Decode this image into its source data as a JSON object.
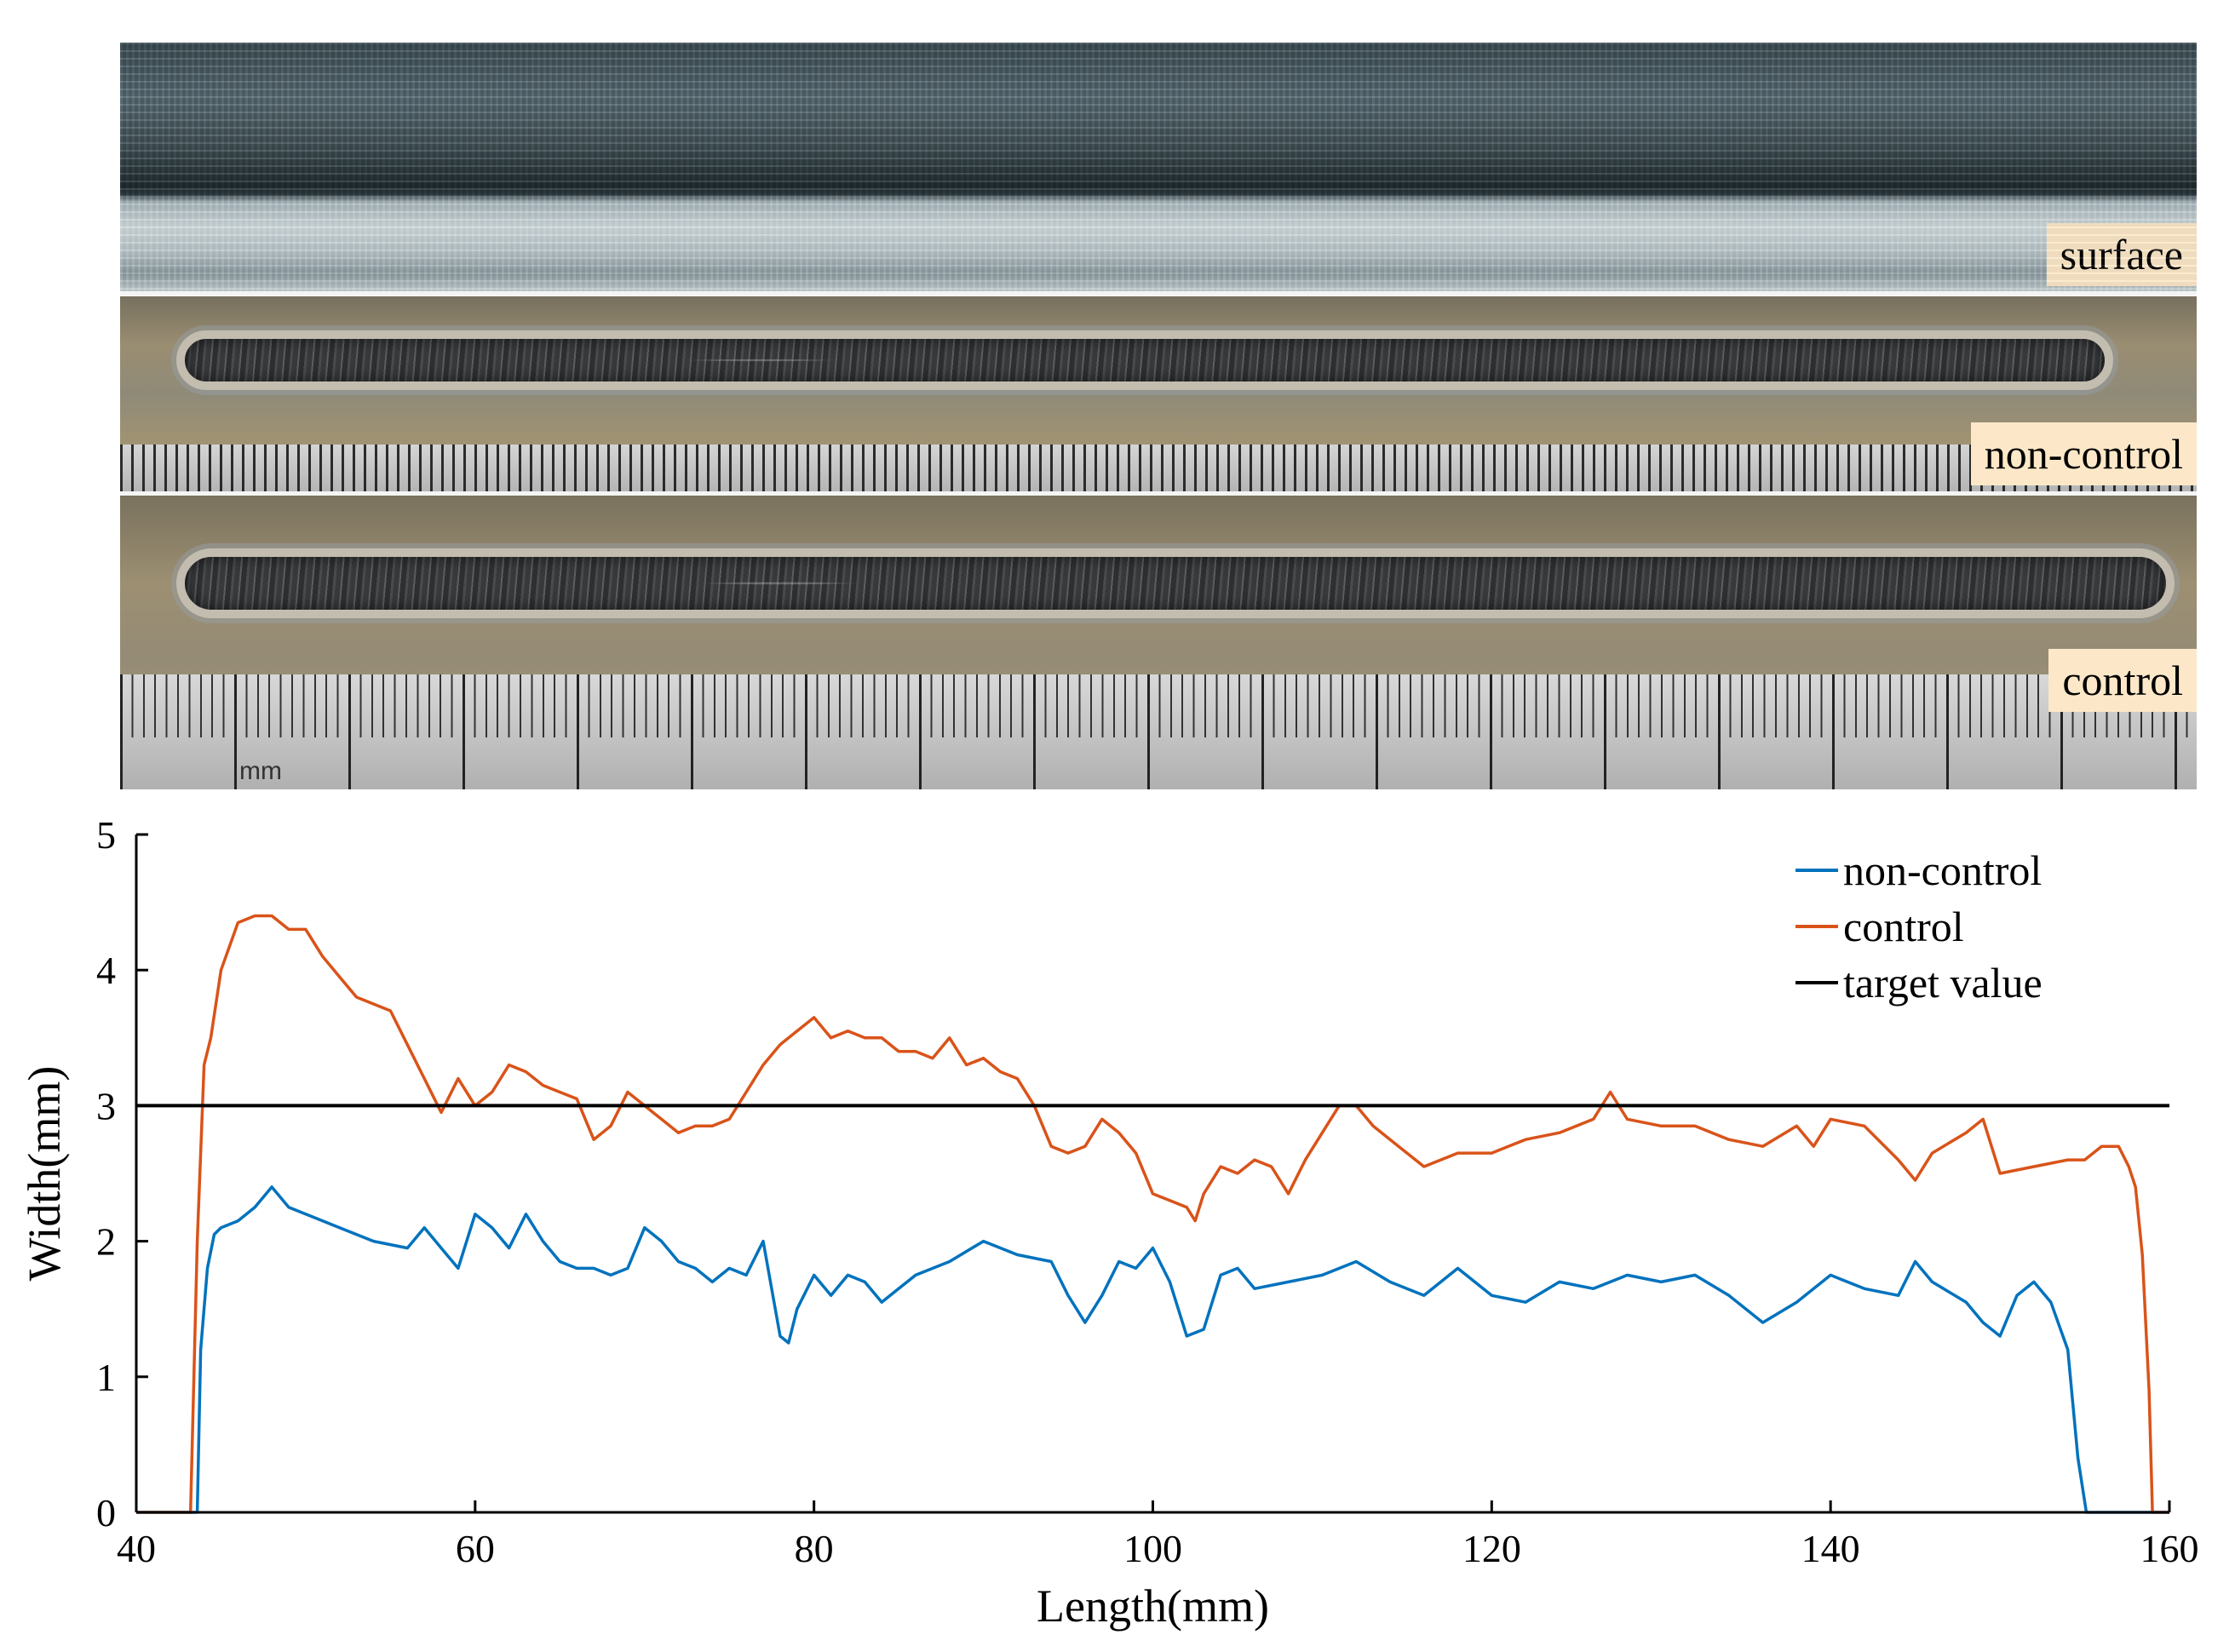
{
  "photos": {
    "surface_label": "surface",
    "noncontrol_label": "non-control",
    "control_label": "control",
    "ruler_unit": "mm"
  },
  "colors": {
    "non_control": "#0072BD",
    "control": "#D95319",
    "target": "#000000"
  },
  "chart_data": {
    "type": "line",
    "xlabel": "Length(mm)",
    "ylabel": "Width(mm)",
    "xlim": [
      40,
      160
    ],
    "ylim": [
      0,
      5
    ],
    "xticks": [
      40,
      60,
      80,
      100,
      120,
      140,
      160
    ],
    "yticks": [
      0,
      1,
      2,
      3,
      4,
      5
    ],
    "grid": false,
    "legend_position": "top-right",
    "series": [
      {
        "name": "non-control",
        "color": "#0072BD",
        "x": [
          40,
          43.6,
          43.8,
          44.2,
          44.6,
          45,
          46,
          47,
          48,
          49,
          50,
          52,
          54,
          56,
          57,
          58,
          59,
          60,
          61,
          62,
          63,
          64,
          65,
          66,
          67,
          68,
          69,
          70,
          71,
          72,
          73,
          74,
          75,
          76,
          77,
          78,
          78.5,
          79,
          80,
          81,
          82,
          83,
          84,
          85,
          86,
          88,
          90,
          92,
          94,
          95,
          96,
          97,
          98,
          99,
          100,
          101,
          102,
          103,
          104,
          105,
          106,
          108,
          110,
          112,
          114,
          116,
          118,
          120,
          122,
          124,
          126,
          128,
          130,
          132,
          134,
          136,
          138,
          140,
          142,
          144,
          145,
          146,
          148,
          149,
          150,
          151,
          152,
          153,
          154,
          154.6,
          155.1,
          156,
          160
        ],
        "y": [
          0,
          0,
          1.2,
          1.8,
          2.05,
          2.1,
          2.15,
          2.25,
          2.4,
          2.25,
          2.2,
          2.1,
          2.0,
          1.95,
          2.1,
          1.95,
          1.8,
          2.2,
          2.1,
          1.95,
          2.2,
          2.0,
          1.85,
          1.8,
          1.8,
          1.75,
          1.8,
          2.1,
          2.0,
          1.85,
          1.8,
          1.7,
          1.8,
          1.75,
          2.0,
          1.3,
          1.25,
          1.5,
          1.75,
          1.6,
          1.75,
          1.7,
          1.55,
          1.65,
          1.75,
          1.85,
          2.0,
          1.9,
          1.85,
          1.6,
          1.4,
          1.6,
          1.85,
          1.8,
          1.95,
          1.7,
          1.3,
          1.35,
          1.75,
          1.8,
          1.65,
          1.7,
          1.75,
          1.85,
          1.7,
          1.6,
          1.8,
          1.6,
          1.55,
          1.7,
          1.65,
          1.75,
          1.7,
          1.75,
          1.6,
          1.4,
          1.55,
          1.75,
          1.65,
          1.6,
          1.85,
          1.7,
          1.55,
          1.4,
          1.3,
          1.6,
          1.7,
          1.55,
          1.2,
          0.4,
          0,
          0,
          0
        ]
      },
      {
        "name": "control",
        "color": "#D95319",
        "x": [
          40,
          43.2,
          43.6,
          44,
          44.4,
          45,
          46,
          47,
          48,
          49,
          50,
          51,
          52,
          53,
          54,
          55,
          56,
          57,
          58,
          59,
          60,
          61,
          62,
          63,
          64,
          65,
          66,
          67,
          68,
          69,
          70,
          71,
          72,
          73,
          74,
          75,
          76,
          77,
          78,
          79,
          80,
          81,
          82,
          83,
          84,
          85,
          86,
          87,
          88,
          89,
          90,
          91,
          92,
          93,
          94,
          95,
          96,
          97,
          98,
          99,
          100,
          101,
          102,
          102.5,
          103,
          104,
          105,
          106,
          107,
          108,
          109,
          110,
          111,
          112,
          113,
          114,
          115,
          116,
          118,
          120,
          122,
          124,
          126,
          127,
          128,
          130,
          132,
          134,
          136,
          138,
          139,
          140,
          142,
          144,
          145,
          146,
          148,
          149,
          150,
          152,
          154,
          155,
          156,
          157,
          157.6,
          158,
          158.4,
          158.8,
          159,
          160
        ],
        "y": [
          0,
          0,
          2.0,
          3.3,
          3.5,
          4.0,
          4.35,
          4.4,
          4.4,
          4.3,
          4.3,
          4.1,
          3.95,
          3.8,
          3.75,
          3.7,
          3.45,
          3.2,
          2.95,
          3.2,
          3.0,
          3.1,
          3.3,
          3.25,
          3.15,
          3.1,
          3.05,
          2.75,
          2.85,
          3.1,
          3.0,
          2.9,
          2.8,
          2.85,
          2.85,
          2.9,
          3.1,
          3.3,
          3.45,
          3.55,
          3.65,
          3.5,
          3.55,
          3.5,
          3.5,
          3.4,
          3.4,
          3.35,
          3.5,
          3.3,
          3.35,
          3.25,
          3.2,
          3.0,
          2.7,
          2.65,
          2.7,
          2.9,
          2.8,
          2.65,
          2.35,
          2.3,
          2.25,
          2.15,
          2.35,
          2.55,
          2.5,
          2.6,
          2.55,
          2.35,
          2.6,
          2.8,
          3.0,
          3.0,
          2.85,
          2.75,
          2.65,
          2.55,
          2.65,
          2.65,
          2.75,
          2.8,
          2.9,
          3.1,
          2.9,
          2.85,
          2.85,
          2.75,
          2.7,
          2.85,
          2.7,
          2.9,
          2.85,
          2.6,
          2.45,
          2.65,
          2.8,
          2.9,
          2.5,
          2.55,
          2.6,
          2.6,
          2.7,
          2.7,
          2.55,
          2.4,
          1.9,
          0.9,
          0,
          0
        ]
      },
      {
        "name": "target value",
        "color": "#000000",
        "x": [
          40,
          160
        ],
        "y": [
          3,
          3
        ]
      }
    ]
  }
}
